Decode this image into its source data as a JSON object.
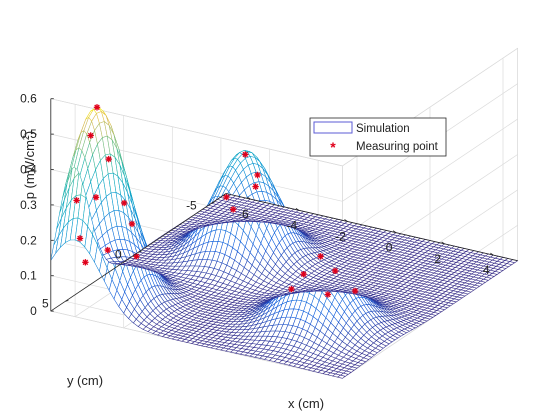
{
  "chart_data": {
    "type": "surface",
    "title": "",
    "xlabel": "x (cm)",
    "ylabel": "y (cm)",
    "zlabel": "p (mW/cm2)",
    "zlabel_base": "p (mW/cm",
    "zlabel_sup": "2",
    "zlabel_close": ")",
    "xlim": [
      -7,
      5
    ],
    "ylim": [
      -6,
      6
    ],
    "zlim": [
      0,
      0.6
    ],
    "x_ticks": [
      "-6",
      "-4",
      "-2",
      "0",
      "2",
      "4"
    ],
    "y_ticks": [
      "-5",
      "0",
      "5"
    ],
    "z_ticks": [
      "0",
      "0.1",
      "0.2",
      "0.3",
      "0.4",
      "0.5",
      "0.6"
    ],
    "grid": true,
    "colormap": "parula",
    "legend": {
      "placement": "inside-right",
      "entries": [
        "Simulation",
        "Measuring point"
      ]
    },
    "surface_peaks": [
      {
        "x": -6,
        "y": 4.5,
        "z": 0.55,
        "sigma": 1.1
      },
      {
        "x": -3.5,
        "y": -1.5,
        "z": 0.3,
        "sigma": 1.1
      },
      {
        "x": 2,
        "y": 2.5,
        "z": 0.2,
        "sigma": 1.2
      }
    ],
    "series": [
      {
        "name": "Simulation",
        "kind": "mesh",
        "color": "#352A87"
      },
      {
        "name": "Measuring point",
        "kind": "scatter",
        "marker": "*",
        "color": "#E0001B",
        "points": [
          {
            "x": -6.0,
            "y": 4.5,
            "z": 0.55
          },
          {
            "x": -6.2,
            "y": 4.6,
            "z": 0.47
          },
          {
            "x": -5.7,
            "y": 4.2,
            "z": 0.4
          },
          {
            "x": -6.9,
            "y": 4.4,
            "z": 0.27
          },
          {
            "x": -5.8,
            "y": 4.9,
            "z": 0.31
          },
          {
            "x": -5.0,
            "y": 4.3,
            "z": 0.29
          },
          {
            "x": -7.0,
            "y": 4.0,
            "z": 0.15
          },
          {
            "x": -5.1,
            "y": 3.6,
            "z": 0.21
          },
          {
            "x": -6.1,
            "y": 3.6,
            "z": 0.12
          },
          {
            "x": -5.1,
            "y": 3.3,
            "z": 0.11
          },
          {
            "x": -7.2,
            "y": 3.3,
            "z": 0.06
          },
          {
            "x": -3.5,
            "y": -1.5,
            "z": 0.29
          },
          {
            "x": -3.0,
            "y": -1.5,
            "z": 0.24
          },
          {
            "x": -4.4,
            "y": -1.7,
            "z": 0.15
          },
          {
            "x": -3.5,
            "y": -2.2,
            "z": 0.18
          },
          {
            "x": -4.6,
            "y": -2.5,
            "z": 0.09
          },
          {
            "x": 2.0,
            "y": 2.5,
            "z": 0.2
          },
          {
            "x": 2.3,
            "y": 2.0,
            "z": 0.15
          },
          {
            "x": 1.0,
            "y": 2.0,
            "z": 0.12
          },
          {
            "x": 0.5,
            "y": 2.0,
            "z": 0.07
          },
          {
            "x": 1.7,
            "y": 1.5,
            "z": 0.06
          },
          {
            "x": 2.7,
            "y": 1.3,
            "z": 0.08
          }
        ]
      }
    ]
  }
}
